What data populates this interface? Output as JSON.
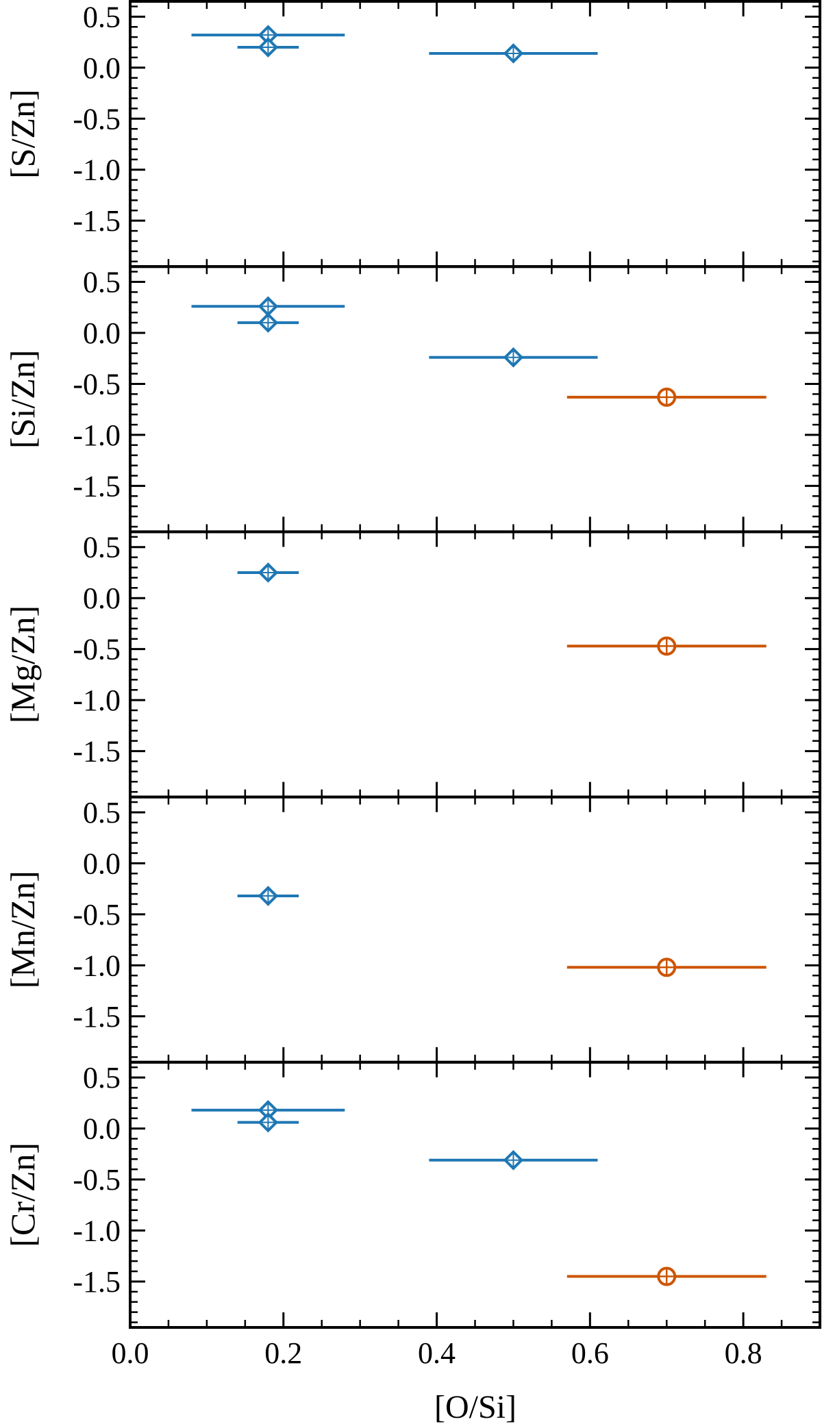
{
  "figure": {
    "x_axis_label": "[O/Si]"
  },
  "colors": {
    "series_blue": "#1f77b4",
    "series_orange": "#cc5500",
    "axes": "#000000"
  },
  "chart_data": [
    {
      "type": "scatter",
      "ylabel": "[S/Zn]",
      "xlabel": "",
      "xlim": [
        0.0,
        0.9
      ],
      "ylim": [
        -1.95,
        0.65
      ],
      "yticks": [
        "0.5",
        "0.0",
        "-0.5",
        "-1.0",
        "-1.5"
      ],
      "series": [
        {
          "marker": "diamond",
          "color": "#1f77b4",
          "points": [
            {
              "x": 0.18,
              "y": 0.32,
              "xerr_low": 0.08,
              "xerr_high": 0.28
            },
            {
              "x": 0.18,
              "y": 0.2,
              "xerr_low": 0.14,
              "xerr_high": 0.22
            },
            {
              "x": 0.5,
              "y": 0.14,
              "xerr_low": 0.39,
              "xerr_high": 0.61
            }
          ]
        }
      ]
    },
    {
      "type": "scatter",
      "ylabel": "[Si/Zn]",
      "xlabel": "",
      "xlim": [
        0.0,
        0.9
      ],
      "ylim": [
        -1.95,
        0.65
      ],
      "yticks": [
        "0.5",
        "0.0",
        "-0.5",
        "-1.0",
        "-1.5"
      ],
      "series": [
        {
          "marker": "diamond",
          "color": "#1f77b4",
          "points": [
            {
              "x": 0.18,
              "y": 0.26,
              "xerr_low": 0.08,
              "xerr_high": 0.28
            },
            {
              "x": 0.18,
              "y": 0.1,
              "xerr_low": 0.14,
              "xerr_high": 0.22
            },
            {
              "x": 0.5,
              "y": -0.24,
              "xerr_low": 0.39,
              "xerr_high": 0.61
            }
          ]
        },
        {
          "marker": "circle",
          "color": "#cc5500",
          "points": [
            {
              "x": 0.7,
              "y": -0.63,
              "xerr_low": 0.57,
              "xerr_high": 0.83
            }
          ]
        }
      ]
    },
    {
      "type": "scatter",
      "ylabel": "[Mg/Zn]",
      "xlabel": "",
      "xlim": [
        0.0,
        0.9
      ],
      "ylim": [
        -1.95,
        0.65
      ],
      "yticks": [
        "0.5",
        "0.0",
        "-0.5",
        "-1.0",
        "-1.5"
      ],
      "series": [
        {
          "marker": "diamond",
          "color": "#1f77b4",
          "points": [
            {
              "x": 0.18,
              "y": 0.25,
              "xerr_low": 0.14,
              "xerr_high": 0.22
            }
          ]
        },
        {
          "marker": "circle",
          "color": "#cc5500",
          "points": [
            {
              "x": 0.7,
              "y": -0.47,
              "xerr_low": 0.57,
              "xerr_high": 0.83
            }
          ]
        }
      ]
    },
    {
      "type": "scatter",
      "ylabel": "[Mn/Zn]",
      "xlabel": "",
      "xlim": [
        0.0,
        0.9
      ],
      "ylim": [
        -1.95,
        0.65
      ],
      "yticks": [
        "0.5",
        "0.0",
        "-0.5",
        "-1.0",
        "-1.5"
      ],
      "series": [
        {
          "marker": "diamond",
          "color": "#1f77b4",
          "points": [
            {
              "x": 0.18,
              "y": -0.32,
              "xerr_low": 0.14,
              "xerr_high": 0.22
            }
          ]
        },
        {
          "marker": "circle",
          "color": "#cc5500",
          "points": [
            {
              "x": 0.7,
              "y": -1.02,
              "xerr_low": 0.57,
              "xerr_high": 0.83
            }
          ]
        }
      ]
    },
    {
      "type": "scatter",
      "ylabel": "[Cr/Zn]",
      "xlabel": "[O/Si]",
      "xlim": [
        0.0,
        0.9
      ],
      "ylim": [
        -1.95,
        0.65
      ],
      "xticks": [
        "0.0",
        "0.2",
        "0.4",
        "0.6",
        "0.8"
      ],
      "yticks": [
        "0.5",
        "0.0",
        "-0.5",
        "-1.0",
        "-1.5"
      ],
      "series": [
        {
          "marker": "diamond",
          "color": "#1f77b4",
          "points": [
            {
              "x": 0.18,
              "y": 0.18,
              "xerr_low": 0.08,
              "xerr_high": 0.28
            },
            {
              "x": 0.18,
              "y": 0.06,
              "xerr_low": 0.14,
              "xerr_high": 0.22
            },
            {
              "x": 0.5,
              "y": -0.31,
              "xerr_low": 0.39,
              "xerr_high": 0.61
            }
          ]
        },
        {
          "marker": "circle",
          "color": "#cc5500",
          "points": [
            {
              "x": 0.7,
              "y": -1.45,
              "xerr_low": 0.57,
              "xerr_high": 0.83
            }
          ]
        }
      ]
    }
  ]
}
